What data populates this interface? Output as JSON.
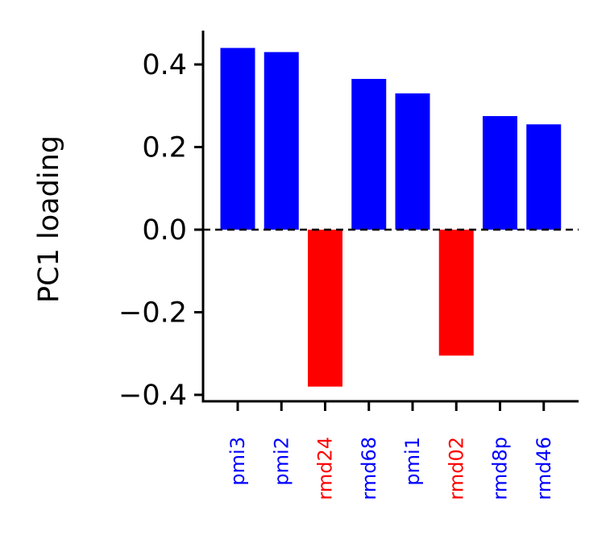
{
  "chart_data": {
    "type": "bar",
    "title": "",
    "xlabel": "",
    "ylabel": "PC1 loading",
    "categories": [
      "pmi3",
      "pmi2",
      "rmd24",
      "rmd68",
      "pmi1",
      "rmd02",
      "rmd8p",
      "rmd46"
    ],
    "values": [
      0.44,
      0.43,
      -0.38,
      0.365,
      0.33,
      -0.305,
      0.275,
      0.255
    ],
    "ylim": [
      -0.42,
      0.48
    ],
    "yticks": [
      0.4,
      0.2,
      0.0,
      -0.2,
      -0.4
    ],
    "ytick_labels": [
      "0.4",
      "0.2",
      "0.0",
      "−0.2",
      "−0.4"
    ],
    "grid": false,
    "zero_line": "dashed",
    "colors": {
      "positive": "#0000ff",
      "negative": "#ff0000",
      "axis": "#000000"
    }
  }
}
